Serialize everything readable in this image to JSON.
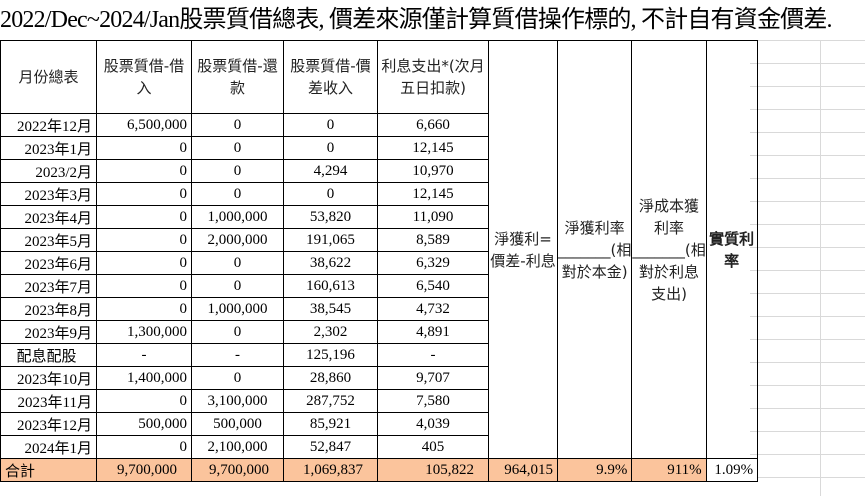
{
  "title": "2022/Dec~2024/Jan股票質借總表, 價差來源僅計算質借操作標的, 不計自有資金價差.",
  "headers": {
    "month": "月份總表",
    "borrow": "股票質借-借入",
    "repay": "股票質借-還款",
    "spread": "股票質借-價差收入",
    "interest": "利息支出*(次月五日扣款)",
    "net_profit": "淨獲利=價差-利息",
    "net_rate": "淨獲利率_______(相對於本金)",
    "cost_rate": "淨成本獲利率_______(相對於利息支出)",
    "real_rate": "實質利率"
  },
  "rows": [
    {
      "month": "2022年12月",
      "borrow": "6,500,000",
      "repay": "0",
      "spread": "0",
      "interest": "6,660"
    },
    {
      "month": "2023年1月",
      "borrow": "0",
      "repay": "0",
      "spread": "0",
      "interest": "12,145"
    },
    {
      "month": "2023/2月",
      "borrow": "0",
      "repay": "0",
      "spread": "4,294",
      "interest": "10,970"
    },
    {
      "month": "2023年3月",
      "borrow": "0",
      "repay": "0",
      "spread": "0",
      "interest": "12,145"
    },
    {
      "month": "2023年4月",
      "borrow": "0",
      "repay": "1,000,000",
      "spread": "53,820",
      "interest": "11,090"
    },
    {
      "month": "2023年5月",
      "borrow": "0",
      "repay": "2,000,000",
      "spread": "191,065",
      "interest": "8,589"
    },
    {
      "month": "2023年6月",
      "borrow": "0",
      "repay": "0",
      "spread": "38,622",
      "interest": "6,329"
    },
    {
      "month": "2023年7月",
      "borrow": "0",
      "repay": "0",
      "spread": "160,613",
      "interest": "6,540"
    },
    {
      "month": "2023年8月",
      "borrow": "0",
      "repay": "1,000,000",
      "spread": "38,545",
      "interest": "4,732"
    },
    {
      "month": "2023年9月",
      "borrow": "1,300,000",
      "repay": "0",
      "spread": "2,302",
      "interest": "4,891"
    },
    {
      "month": "配息配股",
      "borrow": "-",
      "repay": "-",
      "spread": "125,196",
      "interest": "-"
    },
    {
      "month": "2023年10月",
      "borrow": "1,400,000",
      "repay": "0",
      "spread": "28,860",
      "interest": "9,707"
    },
    {
      "month": "2023年11月",
      "borrow": "0",
      "repay": "3,100,000",
      "spread": "287,752",
      "interest": "7,580"
    },
    {
      "month": "2023年12月",
      "borrow": "500,000",
      "repay": "500,000",
      "spread": "85,921",
      "interest": "4,039"
    },
    {
      "month": "2024年1月",
      "borrow": "0",
      "repay": "2,100,000",
      "spread": "52,847",
      "interest": "405"
    }
  ],
  "total": {
    "label": "合計",
    "borrow": "9,700,000",
    "repay": "9,700,000",
    "spread": "1,069,837",
    "interest": "105,822",
    "net_profit": "964,015",
    "net_rate": "9.9%",
    "cost_rate": "911%",
    "real_rate": "1.09%"
  }
}
